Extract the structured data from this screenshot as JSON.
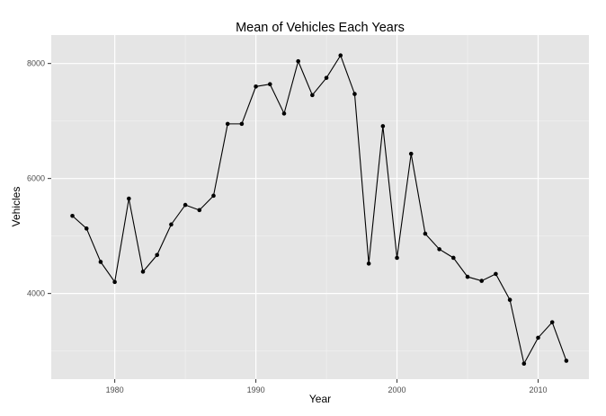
{
  "chart_data": {
    "type": "line",
    "title": "Mean of Vehicles Each Years",
    "xlabel": "Year",
    "ylabel": "Vehicles",
    "x": [
      1977,
      1978,
      1979,
      1980,
      1981,
      1982,
      1983,
      1984,
      1985,
      1986,
      1987,
      1988,
      1989,
      1990,
      1991,
      1992,
      1993,
      1994,
      1995,
      1996,
      1997,
      1998,
      1999,
      2000,
      2001,
      2002,
      2003,
      2004,
      2005,
      2006,
      2007,
      2008,
      2009,
      2010,
      2011,
      2012
    ],
    "series": [
      {
        "values": [
          5350,
          5130,
          4550,
          4200,
          5650,
          4380,
          4670,
          5200,
          5540,
          5450,
          5700,
          6950,
          6950,
          7600,
          7640,
          7130,
          8040,
          7450,
          7750,
          8140,
          7470,
          4520,
          6910,
          4620,
          6430,
          5040,
          4770,
          4620,
          4290,
          4220,
          4340,
          3890,
          2780,
          3230,
          3500,
          2830
        ]
      }
    ],
    "xlim": [
      1975.5,
      2013.6
    ],
    "ylim": [
      2510,
      8495
    ],
    "x_ticks": [
      "1980",
      "1990",
      "2000",
      "2010"
    ],
    "y_ticks": [
      "4000",
      "6000",
      "8000"
    ],
    "x_tick_values": [
      1980,
      1990,
      2000,
      2010
    ],
    "y_tick_values": [
      4000,
      6000,
      8000
    ],
    "x_minor_values": [
      1985,
      1995,
      2005
    ],
    "y_minor_values": [
      3000,
      5000,
      7000
    ],
    "grid": true,
    "style": {
      "panel_background": "#e5e5e5",
      "major_grid": "#ffffff",
      "minor_grid": "#f2f2f2",
      "line_color": "#000000",
      "point_color": "#000000"
    }
  }
}
